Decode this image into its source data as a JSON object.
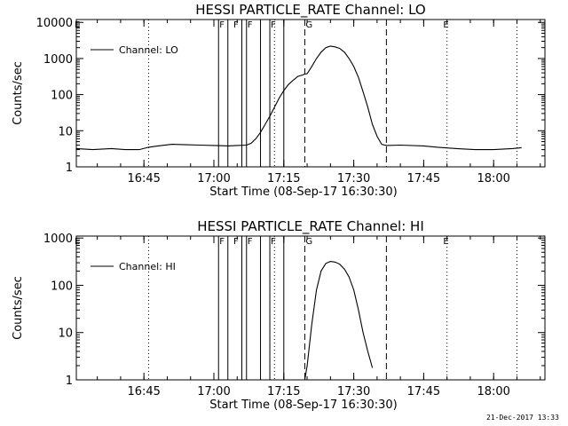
{
  "chart_data": [
    {
      "type": "line",
      "title": "HESSI PARTICLE_RATE Channel: LO",
      "xlabel": "Start Time (08-Sep-17 16:30:30)",
      "ylabel": "Counts/sec",
      "yscale": "log",
      "ylim": [
        1,
        12000
      ],
      "xlim": [
        "16:30:30",
        "18:11"
      ],
      "x_ticks": [
        "16:45",
        "17:00",
        "17:15",
        "17:30",
        "17:45",
        "18:00"
      ],
      "y_ticks": [
        "1",
        "10",
        "100",
        "1000",
        "10000"
      ],
      "legend": "Channel: LO",
      "legend_position": "top-left",
      "line_color": "#000000",
      "series": [
        {
          "x": [
            "16:30:30",
            "16:34",
            "16:38",
            "16:41",
            "16:44",
            "16:46",
            "16:48",
            "16:51",
            "16:54",
            "16:57",
            "17:00",
            "17:03",
            "17:05",
            "17:07",
            "17:08",
            "17:09",
            "17:10",
            "17:11",
            "17:12",
            "17:13",
            "17:14",
            "17:15",
            "17:16",
            "17:17",
            "17:18",
            "17:19",
            "17:19:30",
            "17:20",
            "17:21",
            "17:22",
            "17:23",
            "17:24",
            "17:25",
            "17:26",
            "17:27",
            "17:28",
            "17:29",
            "17:30",
            "17:31",
            "17:32",
            "17:33",
            "17:34",
            "17:35",
            "17:36",
            "17:37",
            "17:40",
            "17:45",
            "17:48",
            "17:52",
            "17:56",
            "18:00",
            "18:04",
            "18:06"
          ],
          "values": [
            3.2,
            3.0,
            3.2,
            3.0,
            3.0,
            3.5,
            3.8,
            4.2,
            4.1,
            4.0,
            3.9,
            3.8,
            3.9,
            4.0,
            4.5,
            6,
            9,
            15,
            25,
            45,
            80,
            130,
            190,
            250,
            320,
            350,
            370,
            380,
            600,
            1000,
            1500,
            2000,
            2200,
            2100,
            1900,
            1500,
            1000,
            600,
            300,
            120,
            45,
            15,
            7,
            4.2,
            3.9,
            4.0,
            3.8,
            3.5,
            3.2,
            3.0,
            3.0,
            3.2,
            3.4
          ]
        }
      ],
      "markers": {
        "F": [
          "17:01",
          "17:04",
          "17:07",
          "17:12"
        ],
        "G": [
          "17:19:30"
        ],
        "E": [
          "17:49"
        ],
        "solid_lines": [
          "17:01",
          "17:03",
          "17:06",
          "17:07",
          "17:10",
          "17:12",
          "17:15"
        ],
        "dashed_lines": [
          "17:19:30",
          "17:37"
        ],
        "dotted_lines": [
          "16:46",
          "17:13",
          "17:50",
          "18:05"
        ]
      }
    },
    {
      "type": "line",
      "title": "HESSI PARTICLE_RATE Channel: HI",
      "xlabel": "Start Time (08-Sep-17 16:30:30)",
      "ylabel": "Counts/sec",
      "yscale": "log",
      "ylim": [
        1,
        1100
      ],
      "xlim": [
        "16:30:30",
        "18:11"
      ],
      "x_ticks": [
        "16:45",
        "17:00",
        "17:15",
        "17:30",
        "17:45",
        "18:00"
      ],
      "y_ticks": [
        "1",
        "10",
        "100",
        "1000"
      ],
      "legend": "Channel: HI",
      "legend_position": "top-left",
      "line_color": "#000000",
      "series": [
        {
          "x": [
            "17:19:30",
            "17:20",
            "17:21",
            "17:22",
            "17:23",
            "17:24",
            "17:25",
            "17:26",
            "17:27",
            "17:28",
            "17:29",
            "17:30",
            "17:31",
            "17:32",
            "17:33",
            "17:34"
          ],
          "values": [
            1,
            2,
            15,
            80,
            200,
            290,
            320,
            310,
            280,
            220,
            150,
            80,
            30,
            10,
            4,
            1.8
          ]
        }
      ],
      "markers": {
        "F": [
          "17:01",
          "17:04",
          "17:07",
          "17:12"
        ],
        "G": [
          "17:19:30"
        ],
        "E": [
          "17:49"
        ],
        "solid_lines": [
          "17:01",
          "17:03",
          "17:06",
          "17:07",
          "17:10",
          "17:12",
          "17:15"
        ],
        "dashed_lines": [
          "17:19:30",
          "17:37"
        ],
        "dotted_lines": [
          "16:46",
          "17:13",
          "17:50",
          "18:05"
        ]
      }
    }
  ],
  "footer": {
    "timestamp": "21-Dec-2017 13:33"
  }
}
